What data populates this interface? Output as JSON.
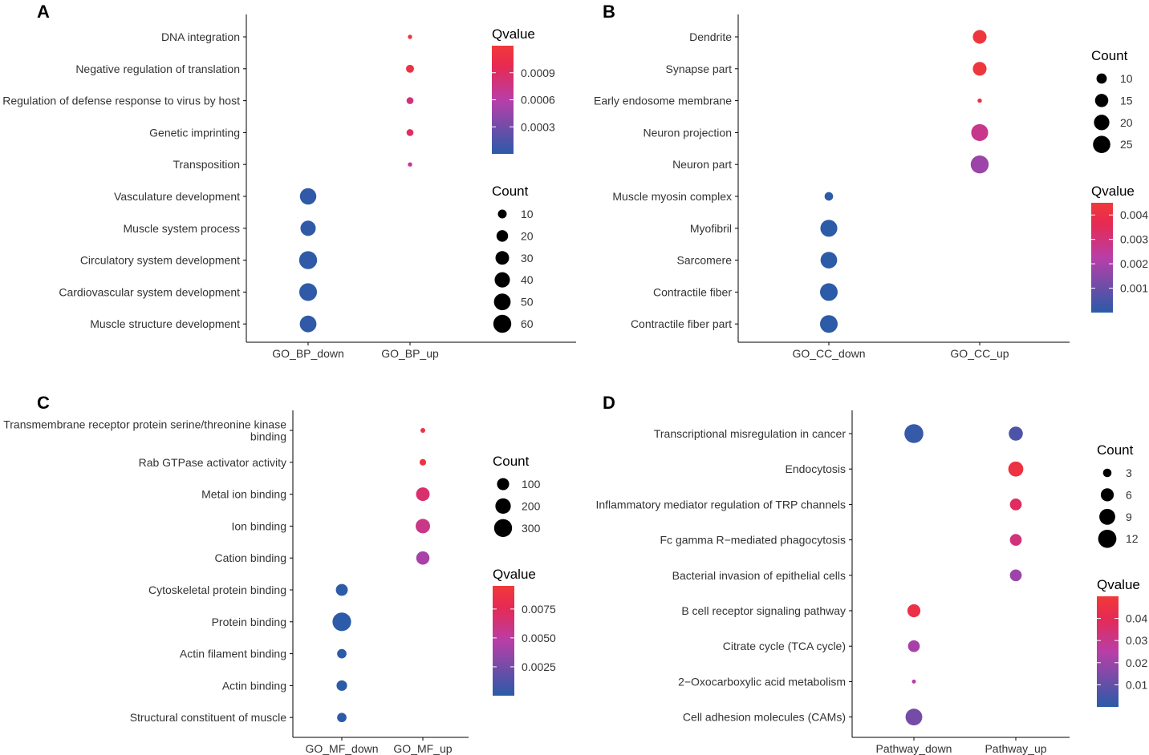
{
  "figure": {
    "colors": {
      "low": "#2b5ba8",
      "mid": "#b83ea8",
      "high": "#e8294f",
      "top": "#f03a3a",
      "axis": "#000000",
      "text": "#333333"
    }
  },
  "chart_data": [
    {
      "panel": "A",
      "type": "scatter",
      "x_categories": [
        "GO_BP_down",
        "GO_BP_up"
      ],
      "y_categories": [
        "DNA integration",
        "Negative regulation of translation",
        "Regulation of defense response to virus by host",
        "Genetic imprinting",
        "Transposition",
        "Vasculature development",
        "Muscle system process",
        "Circulatory system development",
        "Cardiovascular system development",
        "Muscle structure development"
      ],
      "points": [
        {
          "x": "GO_BP_up",
          "y": "DNA integration",
          "count": 4,
          "qvalue": 0.00115
        },
        {
          "x": "GO_BP_up",
          "y": "Negative regulation of translation",
          "count": 8,
          "qvalue": 0.0011
        },
        {
          "x": "GO_BP_up",
          "y": "Regulation of defense response to virus by host",
          "count": 6,
          "qvalue": 0.0008
        },
        {
          "x": "GO_BP_up",
          "y": "Genetic imprinting",
          "count": 6,
          "qvalue": 0.0009
        },
        {
          "x": "GO_BP_up",
          "y": "Transposition",
          "count": 4,
          "qvalue": 0.0007
        },
        {
          "x": "GO_BP_down",
          "y": "Vasculature development",
          "count": 48,
          "qvalue": 2e-05
        },
        {
          "x": "GO_BP_down",
          "y": "Muscle system process",
          "count": 40,
          "qvalue": 2e-05
        },
        {
          "x": "GO_BP_down",
          "y": "Circulatory system development",
          "count": 60,
          "qvalue": 2e-05
        },
        {
          "x": "GO_BP_down",
          "y": "Cardiovascular system development",
          "count": 58,
          "qvalue": 2e-05
        },
        {
          "x": "GO_BP_down",
          "y": "Muscle structure development",
          "count": 50,
          "qvalue": 2e-05
        }
      ],
      "legend_order": [
        "qvalue",
        "count"
      ],
      "qvalue_legend": {
        "title": "Qvalue",
        "range": [
          0.0,
          0.0012
        ],
        "breaks": [
          0.0009,
          0.0006,
          0.0003
        ],
        "labels": [
          "0.0009",
          "0.0006",
          "0.0003"
        ]
      },
      "count_legend": {
        "title": "Count",
        "range": [
          4,
          60
        ],
        "breaks": [
          10,
          20,
          30,
          40,
          50,
          60
        ],
        "labels": [
          "10",
          "20",
          "30",
          "40",
          "50",
          "60"
        ]
      }
    },
    {
      "panel": "B",
      "type": "scatter",
      "x_categories": [
        "GO_CC_down",
        "GO_CC_up"
      ],
      "y_categories": [
        "Dendrite",
        "Synapse part",
        "Early endosome membrane",
        "Neuron projection",
        "Neuron part",
        "Muscle myosin complex",
        "Myofibril",
        "Sarcomere",
        "Contractile fiber",
        "Contractile fiber part"
      ],
      "points": [
        {
          "x": "GO_CC_up",
          "y": "Dendrite",
          "count": 16,
          "qvalue": 0.0043
        },
        {
          "x": "GO_CC_up",
          "y": "Synapse part",
          "count": 16,
          "qvalue": 0.0043
        },
        {
          "x": "GO_CC_up",
          "y": "Early endosome membrane",
          "count": 6,
          "qvalue": 0.004
        },
        {
          "x": "GO_CC_up",
          "y": "Neuron projection",
          "count": 24,
          "qvalue": 0.0027
        },
        {
          "x": "GO_CC_up",
          "y": "Neuron part",
          "count": 27,
          "qvalue": 0.0018
        },
        {
          "x": "GO_CC_down",
          "y": "Muscle myosin complex",
          "count": 8,
          "qvalue": 2e-05
        },
        {
          "x": "GO_CC_down",
          "y": "Myofibril",
          "count": 24,
          "qvalue": 2e-05
        },
        {
          "x": "GO_CC_down",
          "y": "Sarcomere",
          "count": 23,
          "qvalue": 2e-05
        },
        {
          "x": "GO_CC_down",
          "y": "Contractile fiber",
          "count": 26,
          "qvalue": 2e-05
        },
        {
          "x": "GO_CC_down",
          "y": "Contractile fiber part",
          "count": 26,
          "qvalue": 2e-05
        }
      ],
      "legend_order": [
        "count",
        "qvalue"
      ],
      "qvalue_legend": {
        "title": "Qvalue",
        "range": [
          0.0,
          0.0045
        ],
        "breaks": [
          0.004,
          0.003,
          0.002,
          0.001
        ],
        "labels": [
          "0.004",
          "0.003",
          "0.002",
          "0.001"
        ]
      },
      "count_legend": {
        "title": "Count",
        "range": [
          6,
          27
        ],
        "breaks": [
          10,
          15,
          20,
          25
        ],
        "labels": [
          "10",
          "15",
          "20",
          "25"
        ]
      }
    },
    {
      "panel": "C",
      "type": "scatter",
      "x_categories": [
        "GO_MF_down",
        "GO_MF_up"
      ],
      "y_categories": [
        "Transmembrane receptor protein serine/threonine kinase binding",
        "Rab GTPase activator activity",
        "Metal ion binding",
        "Ion binding",
        "Cation binding",
        "Cytoskeletal protein binding",
        "Protein binding",
        "Actin filament binding",
        "Actin binding",
        "Structural constituent of muscle"
      ],
      "y_label_lines": [
        [
          "Transmembrane receptor protein serine/threonine kinase",
          "binding"
        ],
        [
          "Rab GTPase activator activity"
        ],
        [
          "Metal ion binding"
        ],
        [
          "Ion binding"
        ],
        [
          "Cation binding"
        ],
        [
          "Cytoskeletal protein binding"
        ],
        [
          "Protein binding"
        ],
        [
          "Actin filament binding"
        ],
        [
          "Actin binding"
        ],
        [
          "Structural constituent of muscle"
        ]
      ],
      "points": [
        {
          "x": "GO_MF_up",
          "y": "Transmembrane receptor protein serine/threonine kinase binding",
          "count": 10,
          "qvalue": 0.0088
        },
        {
          "x": "GO_MF_up",
          "y": "Rab GTPase activator activity",
          "count": 15,
          "qvalue": 0.0088
        },
        {
          "x": "GO_MF_up",
          "y": "Metal ion binding",
          "count": 140,
          "qvalue": 0.0068
        },
        {
          "x": "GO_MF_up",
          "y": "Ion binding",
          "count": 165,
          "qvalue": 0.0058
        },
        {
          "x": "GO_MF_up",
          "y": "Cation binding",
          "count": 130,
          "qvalue": 0.0042
        },
        {
          "x": "GO_MF_down",
          "y": "Cytoskeletal protein binding",
          "count": 95,
          "qvalue": 2e-05
        },
        {
          "x": "GO_MF_down",
          "y": "Protein binding",
          "count": 330,
          "qvalue": 2e-05
        },
        {
          "x": "GO_MF_down",
          "y": "Actin filament binding",
          "count": 45,
          "qvalue": 2e-05
        },
        {
          "x": "GO_MF_down",
          "y": "Actin binding",
          "count": 65,
          "qvalue": 2e-05
        },
        {
          "x": "GO_MF_down",
          "y": "Structural constituent of muscle",
          "count": 45,
          "qvalue": 2e-05
        }
      ],
      "legend_order": [
        "count",
        "qvalue"
      ],
      "qvalue_legend": {
        "title": "Qvalue",
        "range": [
          0.0,
          0.0095
        ],
        "breaks": [
          0.0075,
          0.005,
          0.0025
        ],
        "labels": [
          "0.0075",
          "0.0050",
          "0.0025"
        ]
      },
      "count_legend": {
        "title": "Count",
        "range": [
          10,
          330
        ],
        "breaks": [
          100,
          200,
          300
        ],
        "labels": [
          "100",
          "200",
          "300"
        ]
      }
    },
    {
      "panel": "D",
      "type": "scatter",
      "x_categories": [
        "Pathway_down",
        "Pathway_up"
      ],
      "y_categories": [
        "Transcriptional misregulation in cancer",
        "Endocytosis",
        "Inflammatory mediator regulation of TRP channels",
        "Fc gamma R−mediated phagocytosis",
        "Bacterial invasion of epithelial cells",
        "B cell receptor signaling pathway",
        "Citrate cycle (TCA cycle)",
        "2−Oxocarboxylic acid metabolism",
        "Cell adhesion molecules (CAMs)"
      ],
      "points": [
        {
          "x": "Pathway_down",
          "y": "Transcriptional misregulation in cancer",
          "count": 13,
          "qvalue": 0.002
        },
        {
          "x": "Pathway_up",
          "y": "Transcriptional misregulation in cancer",
          "count": 7,
          "qvalue": 0.006
        },
        {
          "x": "Pathway_up",
          "y": "Endocytosis",
          "count": 8,
          "qvalue": 0.046
        },
        {
          "x": "Pathway_up",
          "y": "Inflammatory mediator regulation of TRP channels",
          "count": 5,
          "qvalue": 0.038
        },
        {
          "x": "Pathway_up",
          "y": "Fc gamma R−mediated phagocytosis",
          "count": 5,
          "qvalue": 0.033
        },
        {
          "x": "Pathway_up",
          "y": "Bacterial invasion of epithelial cells",
          "count": 5,
          "qvalue": 0.02
        },
        {
          "x": "Pathway_down",
          "y": "B cell receptor signaling pathway",
          "count": 6,
          "qvalue": 0.045
        },
        {
          "x": "Pathway_down",
          "y": "Citrate cycle (TCA cycle)",
          "count": 5,
          "qvalue": 0.022
        },
        {
          "x": "Pathway_down",
          "y": "2−Oxocarboxylic acid metabolism",
          "count": 2,
          "qvalue": 0.025
        },
        {
          "x": "Pathway_down",
          "y": "Cell adhesion molecules (CAMs)",
          "count": 10,
          "qvalue": 0.013
        }
      ],
      "legend_order": [
        "count",
        "qvalue"
      ],
      "qvalue_legend": {
        "title": "Qvalue",
        "range": [
          0.0,
          0.05
        ],
        "breaks": [
          0.04,
          0.03,
          0.02,
          0.01
        ],
        "labels": [
          "0.04",
          "0.03",
          "0.02",
          "0.01"
        ]
      },
      "count_legend": {
        "title": "Count",
        "range": [
          2,
          13
        ],
        "breaks": [
          3,
          6,
          9,
          12
        ],
        "labels": [
          "3",
          "6",
          "9",
          "12"
        ]
      }
    }
  ]
}
